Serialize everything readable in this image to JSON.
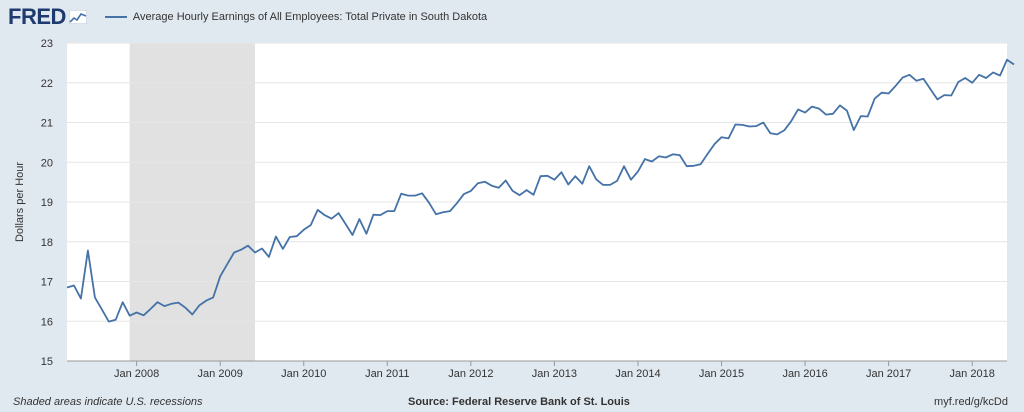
{
  "header": {
    "logo_text": "FRED",
    "legend_label": "Average Hourly Earnings of All Employees: Total Private in South Dakota"
  },
  "footer": {
    "note": "Shaded areas indicate U.S. recessions",
    "source": "Source: Federal Reserve Bank of St. Louis",
    "link": "myf.red/g/kcDd"
  },
  "colors": {
    "background": "#e1e9f0",
    "plot_background": "#ffffff",
    "line": "#4572a7",
    "recession": "#e1e1e1",
    "gridline": "#e6e6e6",
    "logo": "#1f3a6e"
  },
  "chart_data": {
    "type": "line",
    "title": "Average Hourly Earnings of All Employees: Total Private in South Dakota",
    "xlabel": "",
    "ylabel": "Dollars per Hour",
    "ylim": [
      15,
      23
    ],
    "yticks": [
      15,
      16,
      17,
      18,
      19,
      20,
      21,
      22,
      23
    ],
    "xticks": [
      "Jan 2008",
      "Jan 2009",
      "Jan 2010",
      "Jan 2011",
      "Jan 2012",
      "Jan 2013",
      "Jan 2014",
      "Jan 2015",
      "Jan 2016",
      "Jan 2017",
      "Jan 2018"
    ],
    "x_start": "2007-03",
    "x_end": "2018-06",
    "recession": [
      "2007-12",
      "2009-06"
    ],
    "grid": true,
    "legend": "top-left",
    "series": [
      {
        "name": "Average Hourly Earnings of All Employees: Total Private in South Dakota",
        "frequency": "monthly",
        "start": "2007-03",
        "values": [
          16.85,
          16.9,
          16.57,
          17.78,
          16.6,
          16.3,
          15.99,
          16.04,
          16.48,
          16.14,
          16.22,
          16.15,
          16.31,
          16.48,
          16.38,
          16.44,
          16.47,
          16.34,
          16.17,
          16.4,
          16.52,
          16.6,
          17.13,
          17.43,
          17.73,
          17.8,
          17.9,
          17.73,
          17.83,
          17.62,
          18.13,
          17.82,
          18.12,
          18.14,
          18.3,
          18.42,
          18.8,
          18.67,
          18.58,
          18.72,
          18.45,
          18.17,
          18.57,
          18.2,
          18.68,
          18.67,
          18.77,
          18.77,
          19.21,
          19.16,
          19.16,
          19.22,
          18.98,
          18.69,
          18.74,
          18.77,
          18.97,
          19.2,
          19.28,
          19.47,
          19.51,
          19.41,
          19.36,
          19.54,
          19.28,
          19.17,
          19.3,
          19.18,
          19.65,
          19.66,
          19.56,
          19.75,
          19.44,
          19.65,
          19.46,
          19.9,
          19.57,
          19.43,
          19.43,
          19.53,
          19.9,
          19.56,
          19.77,
          20.08,
          20.02,
          20.15,
          20.12,
          20.2,
          20.18,
          19.9,
          19.91,
          19.95,
          20.21,
          20.46,
          20.63,
          20.6,
          20.95,
          20.94,
          20.9,
          20.91,
          21.0,
          20.73,
          20.7,
          20.8,
          21.03,
          21.33,
          21.25,
          21.4,
          21.35,
          21.2,
          21.22,
          21.43,
          21.3,
          20.81,
          21.16,
          21.15,
          21.6,
          21.75,
          21.73,
          21.92,
          22.13,
          22.2,
          22.05,
          22.1,
          21.84,
          21.58,
          21.69,
          21.68,
          22.02,
          22.12,
          22.0,
          22.2,
          22.12,
          22.26,
          22.18,
          22.58,
          22.46
        ]
      }
    ]
  }
}
